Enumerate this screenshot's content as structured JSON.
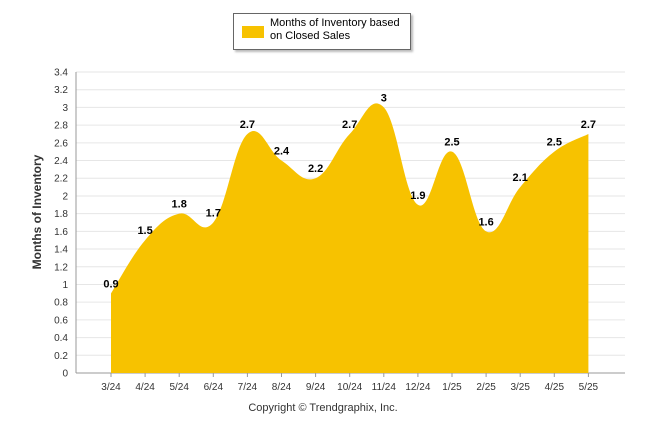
{
  "chart_data": {
    "type": "area",
    "categories": [
      "3/24",
      "4/24",
      "5/24",
      "6/24",
      "7/24",
      "8/24",
      "9/24",
      "10/24",
      "11/24",
      "12/24",
      "1/25",
      "2/25",
      "3/25",
      "4/25",
      "5/25"
    ],
    "series": [
      {
        "name": "Months of Inventory based on Closed Sales",
        "values": [
          0.9,
          1.5,
          1.8,
          1.7,
          2.7,
          2.4,
          2.2,
          2.7,
          3,
          1.9,
          2.5,
          1.6,
          2.1,
          2.5,
          2.7
        ]
      }
    ],
    "data_labels": [
      "0.9",
      "1.5",
      "1.8",
      "1.7",
      "2.7",
      "2.4",
      "2.2",
      "2.7",
      "3",
      "1.9",
      "2.5",
      "1.6",
      "2.1",
      "2.5",
      "2.7"
    ],
    "yticks": [
      "0",
      "0.2",
      "0.4",
      "0.6",
      "0.8",
      "1",
      "1.2",
      "1.4",
      "1.6",
      "1.8",
      "2",
      "2.2",
      "2.4",
      "2.6",
      "2.8",
      "3",
      "3.2",
      "3.4"
    ],
    "ylim": [
      0,
      3.4
    ],
    "ylabel": "Months of Inventory",
    "xlabel": "",
    "grid": true,
    "legend_position": "top-center",
    "colors": {
      "fill": "#f7c200",
      "grid": "#e6e6e6",
      "axis": "#999999"
    }
  },
  "legend": {
    "label": "Months of Inventory based on Closed Sales"
  },
  "footer": {
    "copyright": "Copyright © Trendgraphix, Inc."
  }
}
